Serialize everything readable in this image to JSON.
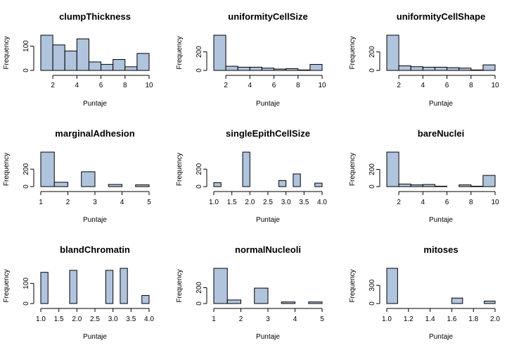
{
  "chart_data": [
    {
      "type": "bar",
      "title": "clumpThickness",
      "xlabel": "Puntaje",
      "ylabel": "Frequency",
      "breaks": [
        1,
        2,
        3,
        4,
        5,
        6,
        7,
        8,
        9,
        10
      ],
      "values": [
        145,
        105,
        80,
        130,
        35,
        25,
        45,
        15,
        70
      ],
      "xlim": [
        1,
        10
      ],
      "xticks": [
        2,
        4,
        6,
        8,
        10
      ],
      "xtick_labels": [
        "2",
        "4",
        "6",
        "8",
        "10"
      ],
      "ylim": [
        0,
        145
      ],
      "yticks": [
        0,
        100
      ],
      "ytick_labels": [
        "0",
        "100"
      ]
    },
    {
      "type": "bar",
      "title": "uniformityCellSize",
      "xlabel": "Puntaje",
      "ylabel": "Frequency",
      "breaks": [
        1,
        2,
        3,
        4,
        5,
        6,
        7,
        8,
        9,
        10
      ],
      "values": [
        380,
        45,
        35,
        35,
        25,
        15,
        20,
        5,
        65
      ],
      "xlim": [
        1,
        10
      ],
      "xticks": [
        2,
        4,
        6,
        8,
        10
      ],
      "xtick_labels": [
        "2",
        "4",
        "6",
        "8",
        "10"
      ],
      "ylim": [
        0,
        380
      ],
      "yticks": [
        0,
        200
      ],
      "ytick_labels": [
        "0",
        "200"
      ]
    },
    {
      "type": "bar",
      "title": "uniformityCellShape",
      "xlabel": "Puntaje",
      "ylabel": "Frequency",
      "breaks": [
        1,
        2,
        3,
        4,
        5,
        6,
        7,
        8,
        9,
        10
      ],
      "values": [
        380,
        50,
        40,
        35,
        35,
        30,
        25,
        5,
        60
      ],
      "xlim": [
        1,
        10
      ],
      "xticks": [
        2,
        4,
        6,
        8,
        10
      ],
      "xtick_labels": [
        "2",
        "4",
        "6",
        "8",
        "10"
      ],
      "ylim": [
        0,
        380
      ],
      "yticks": [
        0,
        200
      ],
      "ytick_labels": [
        "0",
        "200"
      ]
    },
    {
      "type": "bar",
      "title": "marginalAdhesion",
      "xlabel": "Puntaje",
      "ylabel": "Frequency",
      "breaks": [
        1,
        1.5,
        2,
        2.5,
        3,
        3.5,
        4,
        4.5,
        5
      ],
      "values": [
        395,
        50,
        0,
        170,
        0,
        25,
        0,
        20
      ],
      "xlim": [
        1,
        5
      ],
      "xticks": [
        1,
        2,
        3,
        4,
        5
      ],
      "xtick_labels": [
        "1",
        "2",
        "3",
        "4",
        "5"
      ],
      "ylim": [
        0,
        395
      ],
      "yticks": [
        0,
        200
      ],
      "ytick_labels": [
        "0",
        "200"
      ]
    },
    {
      "type": "bar",
      "title": "singleEpithCellSize",
      "xlabel": "Puntaje",
      "ylabel": "Frequency",
      "breaks": [
        1,
        1.2,
        1.4,
        1.6,
        1.8,
        2,
        2.2,
        2.4,
        2.6,
        2.8,
        3,
        3.2,
        3.4,
        3.6,
        3.8,
        4
      ],
      "values": [
        45,
        0,
        0,
        0,
        395,
        0,
        0,
        0,
        0,
        70,
        0,
        145,
        0,
        0,
        40
      ],
      "xlim": [
        1,
        4
      ],
      "xticks": [
        1,
        1.5,
        2,
        2.5,
        3,
        3.5,
        4
      ],
      "xtick_labels": [
        "1.0",
        "1.5",
        "2.0",
        "2.5",
        "3.0",
        "3.5",
        "4.0"
      ],
      "ylim": [
        0,
        395
      ],
      "yticks": [
        0,
        200
      ],
      "ytick_labels": [
        "0",
        "200"
      ]
    },
    {
      "type": "bar",
      "title": "bareNuclei",
      "xlabel": "Puntaje",
      "ylabel": "Frequency",
      "breaks": [
        1,
        2,
        3,
        4,
        5,
        6,
        7,
        8,
        9,
        10
      ],
      "values": [
        400,
        30,
        20,
        25,
        5,
        0,
        20,
        5,
        130
      ],
      "xlim": [
        1,
        10
      ],
      "xticks": [
        2,
        4,
        6,
        8,
        10
      ],
      "xtick_labels": [
        "2",
        "4",
        "6",
        "8",
        "10"
      ],
      "ylim": [
        0,
        400
      ],
      "yticks": [
        0,
        200
      ],
      "ytick_labels": [
        "0",
        "200"
      ]
    },
    {
      "type": "bar",
      "title": "blandChromatin",
      "xlabel": "Puntaje",
      "ylabel": "Frequency",
      "breaks": [
        1,
        1.2,
        1.4,
        1.6,
        1.8,
        2,
        2.2,
        2.4,
        2.6,
        2.8,
        3,
        3.2,
        3.4,
        3.6,
        3.8,
        4
      ],
      "values": [
        155,
        0,
        0,
        0,
        165,
        0,
        0,
        0,
        0,
        165,
        0,
        175,
        0,
        0,
        40
      ],
      "xlim": [
        1,
        4
      ],
      "xticks": [
        1,
        1.5,
        2,
        2.5,
        3,
        3.5,
        4
      ],
      "xtick_labels": [
        "1.0",
        "1.5",
        "2.0",
        "2.5",
        "3.0",
        "3.5",
        "4.0"
      ],
      "ylim": [
        0,
        175
      ],
      "yticks": [
        0,
        100
      ],
      "ytick_labels": [
        "0",
        "100"
      ]
    },
    {
      "type": "bar",
      "title": "normalNucleoli",
      "xlabel": "Puntaje",
      "ylabel": "Frequency",
      "breaks": [
        1,
        1.5,
        2,
        2.5,
        3,
        3.5,
        4,
        4.5,
        5
      ],
      "values": [
        445,
        45,
        0,
        195,
        0,
        20,
        0,
        20
      ],
      "xlim": [
        1,
        5
      ],
      "xticks": [
        1,
        2,
        3,
        4,
        5
      ],
      "xtick_labels": [
        "1",
        "2",
        "3",
        "4",
        "5"
      ],
      "ylim": [
        0,
        445
      ],
      "yticks": [
        0,
        200
      ],
      "ytick_labels": [
        "0",
        "200"
      ]
    },
    {
      "type": "bar",
      "title": "mitoses",
      "xlabel": "Puntaje",
      "ylabel": "Frequency",
      "breaks": [
        1,
        1.1,
        1.2,
        1.3,
        1.4,
        1.5,
        1.6,
        1.7,
        1.8,
        1.9,
        2
      ],
      "values": [
        580,
        0,
        0,
        0,
        0,
        0,
        90,
        0,
        0,
        40
      ],
      "xlim": [
        1,
        2
      ],
      "xticks": [
        1,
        1.2,
        1.4,
        1.6,
        1.8,
        2
      ],
      "xtick_labels": [
        "1.0",
        "1.2",
        "1.4",
        "1.6",
        "1.8",
        "2.0"
      ],
      "ylim": [
        0,
        580
      ],
      "yticks": [
        0,
        300
      ],
      "ytick_labels": [
        "0",
        "300"
      ]
    }
  ]
}
